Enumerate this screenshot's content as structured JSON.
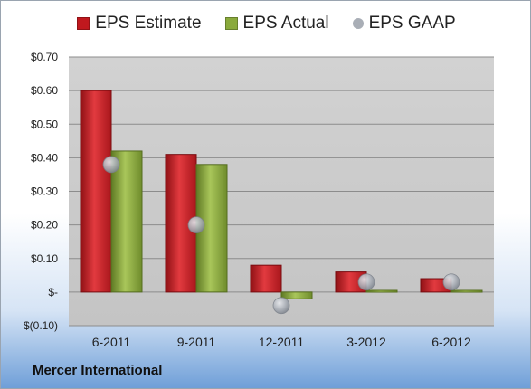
{
  "company": "Mercer International",
  "chart_data": {
    "type": "bar",
    "categories": [
      "6-2011",
      "9-2011",
      "12-2011",
      "3-2012",
      "6-2012"
    ],
    "series": [
      {
        "name": "EPS Estimate",
        "kind": "bar",
        "color": "#c0181e",
        "values": [
          0.6,
          0.41,
          0.08,
          0.06,
          0.04
        ]
      },
      {
        "name": "EPS Actual",
        "kind": "bar",
        "color": "#8aaa3c",
        "values": [
          0.42,
          0.38,
          -0.02,
          0.005,
          0.005
        ]
      },
      {
        "name": "EPS GAAP",
        "kind": "point",
        "color": "#a9aeb6",
        "values": [
          0.38,
          0.2,
          -0.04,
          0.03,
          0.03
        ]
      }
    ],
    "y_ticks": [
      {
        "value": 0.7,
        "label": "$0.70"
      },
      {
        "value": 0.6,
        "label": "$0.60"
      },
      {
        "value": 0.5,
        "label": "$0.50"
      },
      {
        "value": 0.4,
        "label": "$0.40"
      },
      {
        "value": 0.3,
        "label": "$0.30"
      },
      {
        "value": 0.2,
        "label": "$0.20"
      },
      {
        "value": 0.1,
        "label": "$0.10"
      },
      {
        "value": 0.0,
        "label": "$-"
      },
      {
        "value": -0.1,
        "label": "$(0.10)"
      }
    ],
    "ylim": [
      -0.1,
      0.7
    ],
    "grid": true,
    "legend_position": "top"
  }
}
